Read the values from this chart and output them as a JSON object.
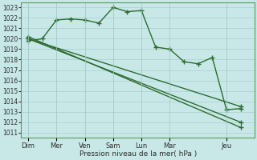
{
  "xlabel": "Pression niveau de la mer( hPa )",
  "background_color": "#c8e8e8",
  "grid_color": "#a8cccc",
  "line_color": "#2d6b2d",
  "ylim": [
    1010.5,
    1023.5
  ],
  "yticks": [
    1011,
    1012,
    1013,
    1014,
    1015,
    1016,
    1017,
    1018,
    1019,
    1020,
    1021,
    1022,
    1023
  ],
  "xtick_labels": [
    "Dim",
    "Mer",
    "Ven",
    "Sam",
    "Lun",
    "Mar",
    "Jeu"
  ],
  "xtick_positions": [
    0,
    2,
    4,
    6,
    8,
    10,
    14
  ],
  "series": [
    {
      "x": [
        0,
        1,
        2,
        3,
        4,
        5,
        6,
        7,
        8,
        9,
        10,
        11,
        12,
        13,
        14,
        15
      ],
      "y": [
        1019.8,
        1020.0,
        1021.8,
        1021.9,
        1021.8,
        1021.5,
        1023.0,
        1022.6,
        1022.7,
        1019.2,
        1019.0,
        1017.8,
        1017.6,
        1018.2,
        1013.2,
        1013.3
      ]
    },
    {
      "x": [
        0,
        15
      ],
      "y": [
        1020.0,
        1013.5
      ]
    },
    {
      "x": [
        0,
        15
      ],
      "y": [
        1020.2,
        1011.5
      ]
    },
    {
      "x": [
        0,
        15
      ],
      "y": [
        1020.0,
        1012.0
      ]
    }
  ],
  "jagged_markers": {
    "x": [
      0,
      1,
      2,
      3,
      4,
      5,
      6,
      7,
      8,
      9,
      10,
      11,
      12,
      13,
      14,
      15
    ],
    "y": [
      1019.8,
      1020.0,
      1021.8,
      1021.9,
      1021.8,
      1021.5,
      1023.0,
      1022.6,
      1022.7,
      1019.2,
      1019.0,
      1017.8,
      1017.6,
      1018.2,
      1013.2,
      1013.3
    ]
  },
  "xlim": [
    -0.5,
    16
  ],
  "marker": "+",
  "markersize": 4,
  "linewidth": 1.0
}
